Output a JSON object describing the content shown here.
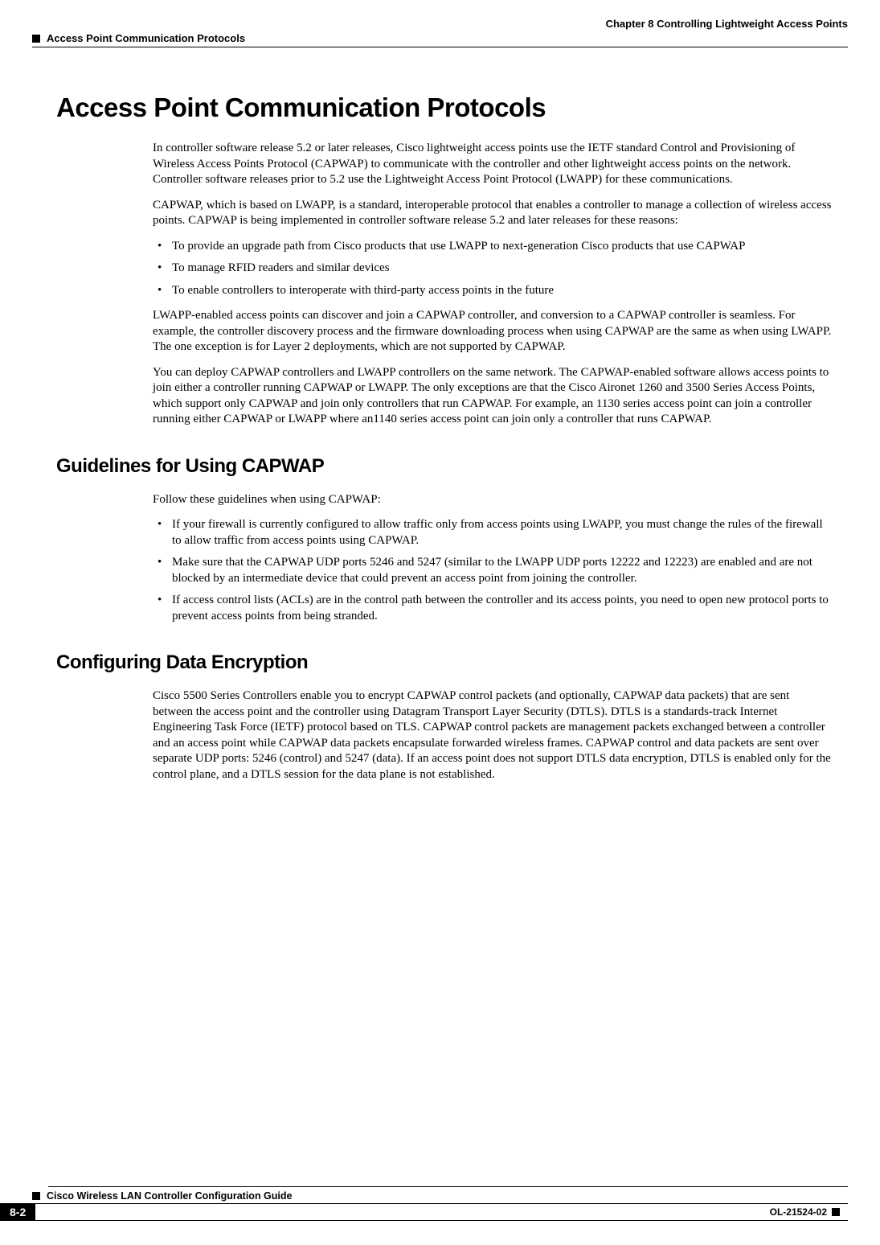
{
  "header": {
    "chapter": "Chapter 8      Controlling Lightweight Access Points",
    "section": "Access Point Communication Protocols"
  },
  "h1": "Access Point Communication Protocols",
  "intro": {
    "p1": "In controller software release 5.2 or later releases, Cisco lightweight access points use the IETF standard Control and Provisioning of Wireless Access Points Protocol (CAPWAP) to communicate with the controller and other lightweight access points on the network. Controller software releases prior to 5.2 use the Lightweight Access Point Protocol (LWAPP) for these communications.",
    "p2": "CAPWAP, which is based on LWAPP, is a standard, interoperable protocol that enables a controller to manage a collection of wireless access points. CAPWAP is being implemented in controller software release 5.2 and later releases for these reasons:",
    "bullets": [
      "To provide an upgrade path from Cisco products that use LWAPP to next-generation Cisco products that use CAPWAP",
      "To manage RFID readers and similar devices",
      "To enable controllers to interoperate with third-party access points in the future"
    ],
    "p3": "LWAPP-enabled access points can discover and join a CAPWAP controller, and conversion to a CAPWAP controller is seamless. For example, the controller discovery process and the firmware downloading process when using CAPWAP are the same as when using LWAPP. The one exception is for Layer 2 deployments, which are not supported by CAPWAP.",
    "p4": "You can deploy CAPWAP controllers and LWAPP controllers on the same network. The CAPWAP-enabled software allows access points to join either a controller running CAPWAP or LWAPP. The only exceptions are that the Cisco Aironet 1260 and 3500 Series Access Points, which support only CAPWAP and join only controllers that run CAPWAP. For example, an 1130 series access point can join a controller running either CAPWAP or LWAPP where an1140 series access point can join only a controller that runs CAPWAP."
  },
  "guidelines": {
    "heading": "Guidelines for Using CAPWAP",
    "lead": "Follow these guidelines when using CAPWAP:",
    "bullets": [
      "If your firewall is currently configured to allow traffic only from access points using LWAPP, you must change the rules of the firewall to allow traffic from access points using CAPWAP.",
      "Make sure that the CAPWAP UDP ports 5246 and 5247 (similar to the LWAPP UDP ports 12222 and 12223) are enabled and are not blocked by an intermediate device that could prevent an access point from joining the controller.",
      "If access control lists (ACLs) are in the control path between the controller and its access points, you need to open new protocol ports to prevent access points from being stranded."
    ]
  },
  "encryption": {
    "heading": "Configuring Data Encryption",
    "p1": "Cisco 5500 Series Controllers enable you to encrypt CAPWAP control packets (and optionally, CAPWAP data packets) that are sent between the access point and the controller using Datagram Transport Layer Security (DTLS). DTLS is a standards-track Internet Engineering Task Force (IETF) protocol based on TLS. CAPWAP control packets are management packets exchanged between a controller and an access point while CAPWAP data packets encapsulate forwarded wireless frames. CAPWAP control and data packets are sent over separate UDP ports: 5246 (control) and 5247 (data). If an access point does not support DTLS data encryption, DTLS is enabled only for the control plane, and a DTLS session for the data plane is not established."
  },
  "footer": {
    "guide_title": "Cisco Wireless LAN Controller Configuration Guide",
    "page_num": "8-2",
    "doc_id": "OL-21524-02"
  }
}
